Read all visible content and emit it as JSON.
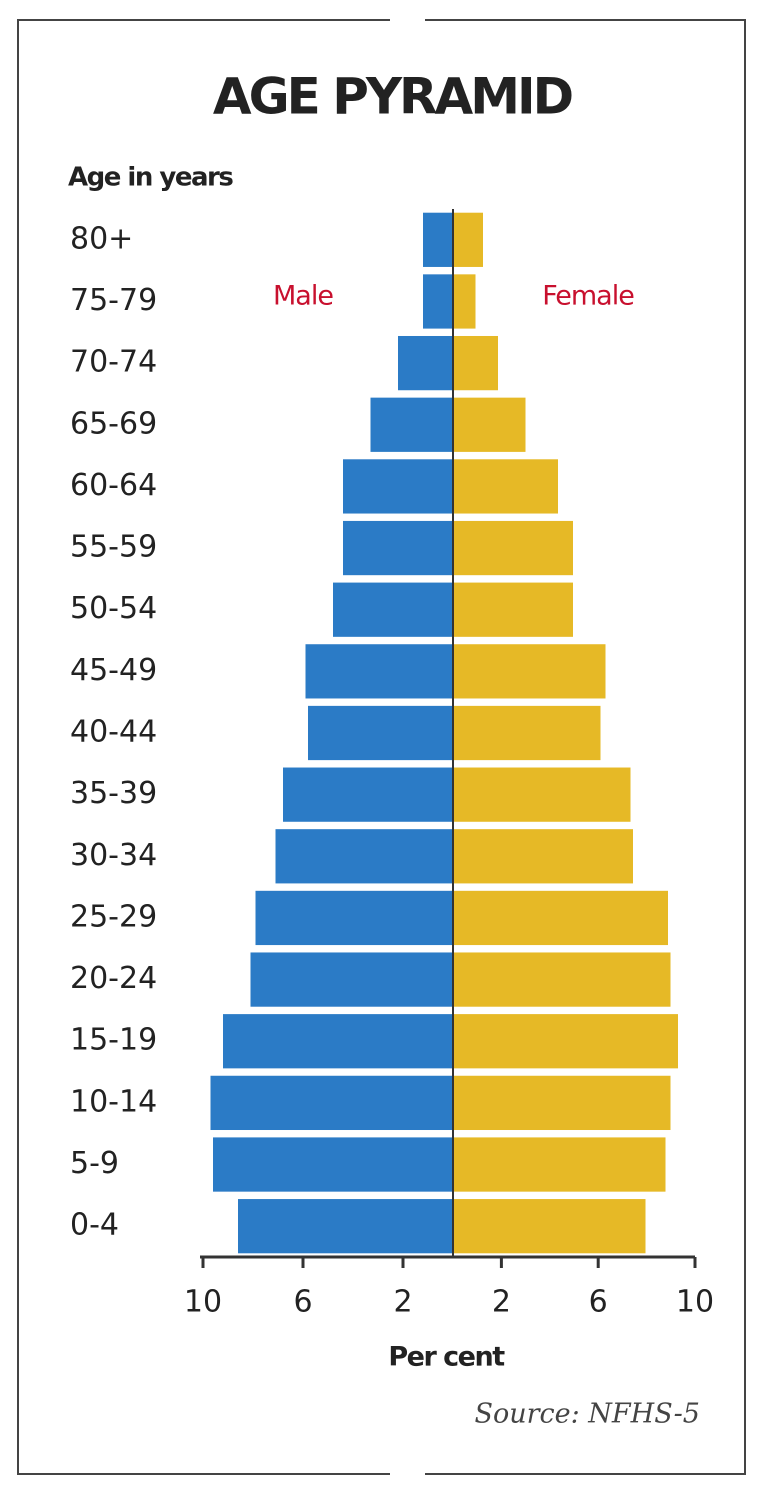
{
  "chart_data": {
    "type": "pyramid",
    "title": "AGE PYRAMID",
    "y_label": "Age in years",
    "x_label": "Per cent",
    "source": "Source: NFHS-5",
    "categories": [
      "80+",
      "75-79",
      "70-74",
      "65-69",
      "60-64",
      "55-59",
      "50-54",
      "45-49",
      "40-44",
      "35-39",
      "30-34",
      "25-29",
      "20-24",
      "15-19",
      "10-14",
      "5-9",
      "0-4"
    ],
    "series": [
      {
        "name": "Male",
        "color": "#2b7bc6",
        "values": [
          1.2,
          1.2,
          2.2,
          3.3,
          4.4,
          4.4,
          4.8,
          5.9,
          5.8,
          6.8,
          7.1,
          7.9,
          8.1,
          9.2,
          9.7,
          9.6,
          8.6
        ]
      },
      {
        "name": "Female",
        "color": "#e6b926",
        "values": [
          1.2,
          0.9,
          1.8,
          2.9,
          4.2,
          4.8,
          4.8,
          6.1,
          5.9,
          7.1,
          7.2,
          8.6,
          8.7,
          9.0,
          8.7,
          8.5,
          7.7
        ]
      }
    ],
    "xlim": [
      -10,
      10
    ],
    "xticks": [
      {
        "value": -10,
        "label": "10"
      },
      {
        "value": -6,
        "label": "6"
      },
      {
        "value": -2,
        "label": "2"
      },
      2,
      6,
      10
    ]
  }
}
